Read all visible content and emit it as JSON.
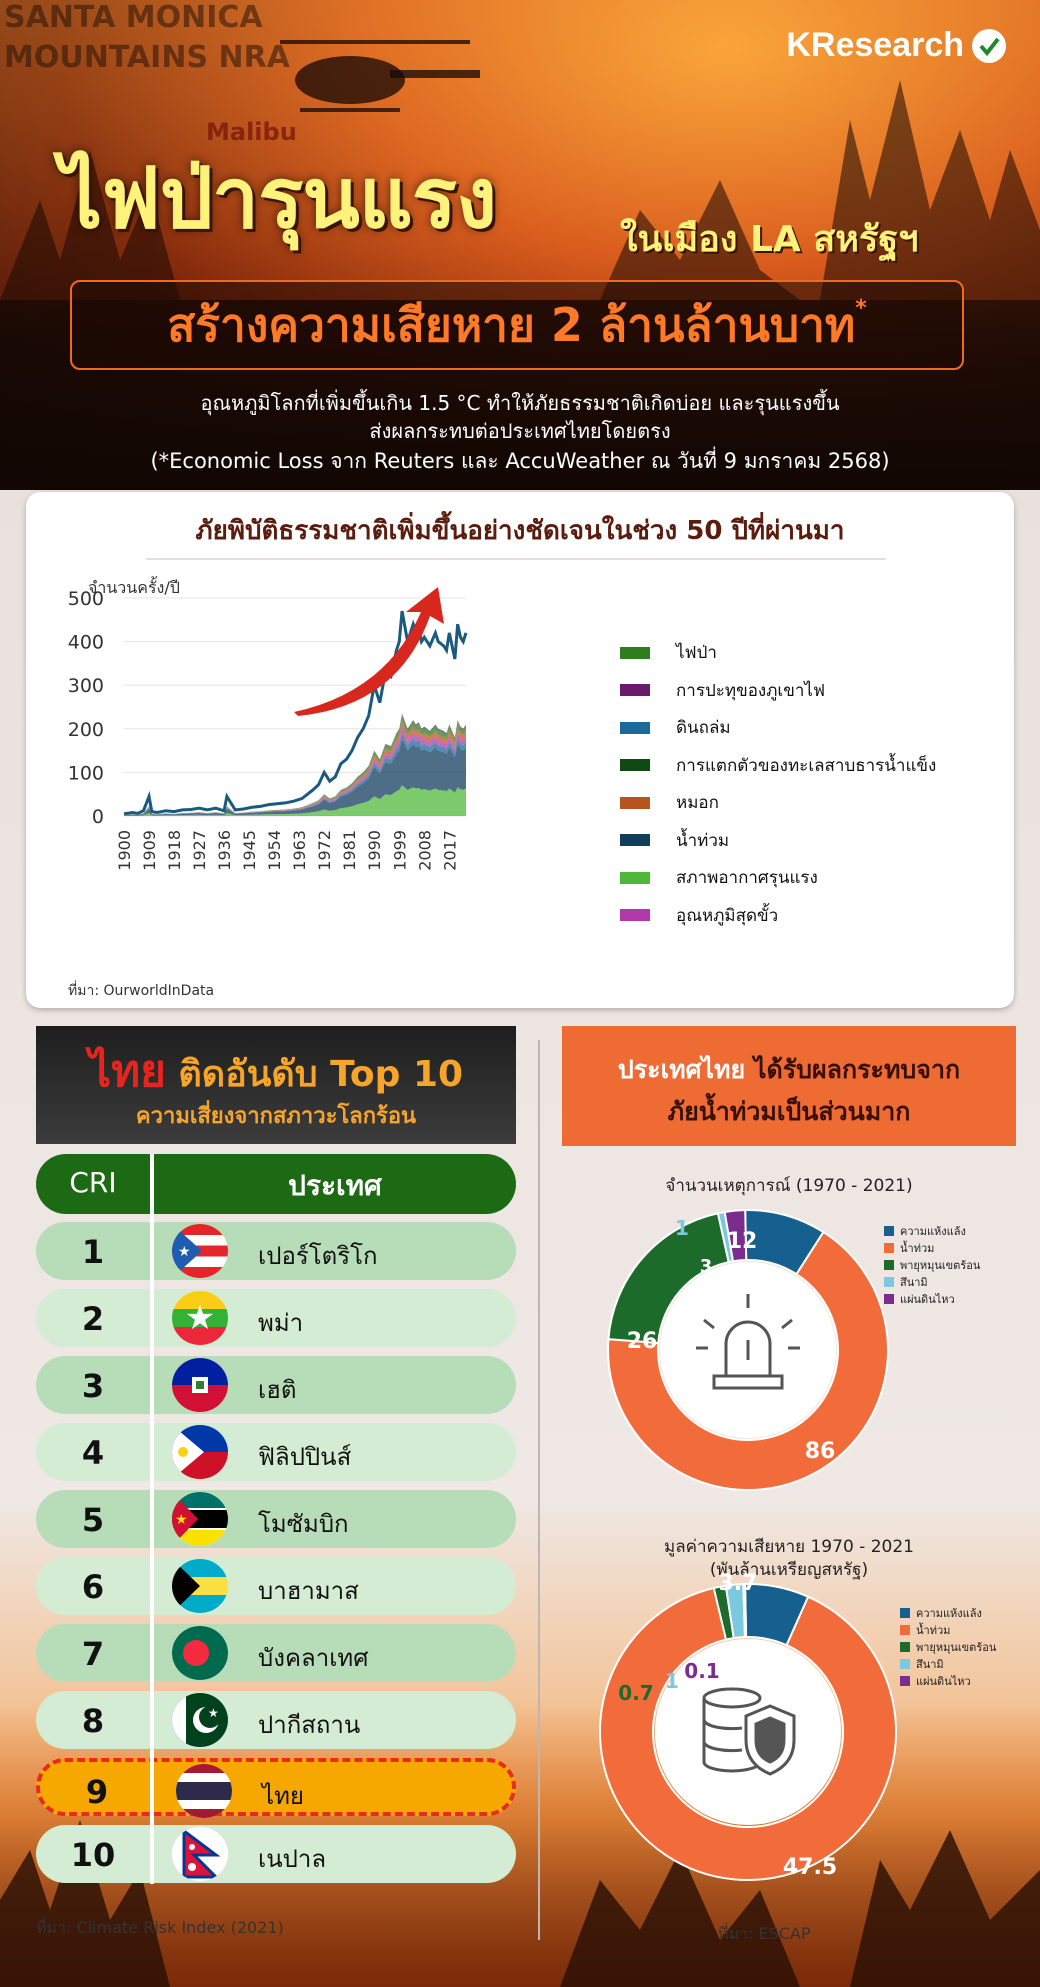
{
  "brand": "KResearch",
  "hero": {
    "map_labels": [
      "SANTA MONICA",
      "MOUNTAINS NRA",
      "Malibu"
    ],
    "title_main": "ไฟป่ารุนแรง",
    "title_side": "ในเมือง LA สหรัฐฯ",
    "banner": "สร้างความเสียหาย 2 ล้านล้านบาท",
    "banner_mark": "*",
    "sub1": "อุณหภูมิโลกที่เพิ่มขึ้นเกิน 1.5 °C ทำให้ภัยธรรมชาติเกิดบ่อย และรุนแรงขึ้น",
    "sub2": "ส่งผลกระทบต่อประเทศไทยโดยตรง",
    "sub3": "(*Economic Loss จาก Reuters และ AccuWeather ณ วันที่ 9 มกราคม 2568)"
  },
  "colors": {
    "dark_red": "#5b1c0e",
    "orange": "#ee6b34",
    "green": "#1d6a15",
    "highlight": "#f7a800"
  },
  "chart_data": [
    {
      "type": "area",
      "title": "ภัยพิบัติธรรมชาติเพิ่มขึ้นอย่างชัดเจนในช่วง 50 ปีที่ผ่านมา",
      "ylabel": "จำนวนครั้ง/ปี",
      "ylim": [
        0,
        500
      ],
      "yticks": [
        0,
        100,
        200,
        300,
        400,
        500
      ],
      "xlim": [
        1900,
        2023
      ],
      "xticks": [
        1900,
        1909,
        1918,
        1927,
        1936,
        1945,
        1954,
        1963,
        1972,
        1981,
        1990,
        1999,
        2008,
        2017
      ],
      "stacked": true,
      "grid": true,
      "legend_position": "right",
      "total_series": {
        "x": [
          1900,
          1903,
          1905,
          1907,
          1909,
          1910,
          1912,
          1915,
          1918,
          1921,
          1924,
          1927,
          1930,
          1933,
          1936,
          1937,
          1940,
          1943,
          1946,
          1949,
          1952,
          1955,
          1958,
          1961,
          1964,
          1966,
          1968,
          1970,
          1972,
          1974,
          1976,
          1978,
          1980,
          1982,
          1984,
          1986,
          1988,
          1990,
          1992,
          1994,
          1996,
          1998,
          1999,
          2000,
          2002,
          2004,
          2005,
          2006,
          2007,
          2008,
          2010,
          2012,
          2013,
          2015,
          2016,
          2017,
          2019,
          2020,
          2021,
          2022,
          2023
        ],
        "y": [
          5,
          8,
          6,
          12,
          45,
          10,
          8,
          12,
          10,
          14,
          15,
          18,
          14,
          18,
          12,
          45,
          14,
          16,
          20,
          22,
          26,
          28,
          30,
          34,
          40,
          50,
          60,
          72,
          100,
          80,
          90,
          120,
          130,
          150,
          180,
          200,
          230,
          300,
          260,
          330,
          320,
          380,
          400,
          470,
          400,
          440,
          420,
          430,
          400,
          410,
          390,
          420,
          400,
          390,
          380,
          420,
          360,
          440,
          410,
          400,
          420
        ]
      },
      "series": [
        {
          "name": "ไฟป่า",
          "color": "#2e7d1e"
        },
        {
          "name": "การปะทุของภูเขาไฟ",
          "color": "#6b1a6b"
        },
        {
          "name": "ดินถล่ม",
          "color": "#1b6a9a"
        },
        {
          "name": "การแตกตัวของทะเลสาบธารน้ำแข็ง",
          "color": "#0f4a12"
        },
        {
          "name": "หมอก",
          "color": "#b8541e"
        },
        {
          "name": "น้ำท่วม",
          "color": "#123e5e"
        },
        {
          "name": "สภาพอากาศรุนแรง",
          "color": "#4fb83a"
        },
        {
          "name": "อุณหภูมิสุดขั้ว",
          "color": "#b23aa8"
        }
      ],
      "source": "ที่มา: OurworldInData"
    },
    {
      "type": "pie",
      "title": "จำนวนเหตุการณ์ (1970 - 2021)",
      "categories": [
        "ความแห้งแล้ง",
        "น้ำท่วม",
        "พายุหมุนเขตร้อน",
        "สึนามิ",
        "แผ่นดินไหว"
      ],
      "values": [
        12,
        86,
        26,
        1,
        3
      ],
      "colors": [
        "#16608f",
        "#f26b3a",
        "#1c6b2a",
        "#7cc8e0",
        "#7b2c8c"
      ]
    },
    {
      "type": "pie",
      "title": "มูลค่าความเสียหาย 1970 - 2021",
      "subtitle": "(พันล้านเหรียญสหรัฐ)",
      "categories": [
        "ความแห้งแล้ง",
        "น้ำท่วม",
        "พายุหมุนเขตร้อน",
        "สึนามิ",
        "แผ่นดินไหว"
      ],
      "values": [
        3.7,
        47.5,
        0.7,
        1,
        0.1
      ],
      "colors": [
        "#16608f",
        "#f26b3a",
        "#1c6b2a",
        "#7cc8e0",
        "#7b2c8c"
      ],
      "source": "ที่มา: ESCAP"
    }
  ],
  "ranking": {
    "title_red": "ไทย",
    "title_rest": " ติดอันดับ Top 10",
    "subtitle": "ความเสี่ยงจากสภาวะโลกร้อน",
    "col_rank": "CRI",
    "col_country": "ประเทศ",
    "rows": [
      {
        "rank": "1",
        "country": "เปอร์โตริโก",
        "flag": "puerto-rico-flag-icon"
      },
      {
        "rank": "2",
        "country": "พม่า",
        "flag": "myanmar-flag-icon"
      },
      {
        "rank": "3",
        "country": "เฮติ",
        "flag": "haiti-flag-icon"
      },
      {
        "rank": "4",
        "country": "ฟิลิปปินส์",
        "flag": "philippines-flag-icon"
      },
      {
        "rank": "5",
        "country": "โมซัมบิก",
        "flag": "mozambique-flag-icon"
      },
      {
        "rank": "6",
        "country": "บาฮามาส",
        "flag": "bahamas-flag-icon"
      },
      {
        "rank": "7",
        "country": "บังคลาเทศ",
        "flag": "bangladesh-flag-icon"
      },
      {
        "rank": "8",
        "country": "ปากีสถาน",
        "flag": "pakistan-flag-icon"
      },
      {
        "rank": "9",
        "country": "ไทย",
        "flag": "thailand-flag-icon"
      },
      {
        "rank": "10",
        "country": "เนปาล",
        "flag": "nepal-flag-icon"
      }
    ],
    "source": "ที่มา: Climate Risk Index (2021)"
  },
  "impact": {
    "line1_a": "ประเทศไทย",
    "line1_b": " ได้รับผลกระทบจาก",
    "line2": "ภัยน้ำท่วมเป็นส่วนมาก"
  }
}
